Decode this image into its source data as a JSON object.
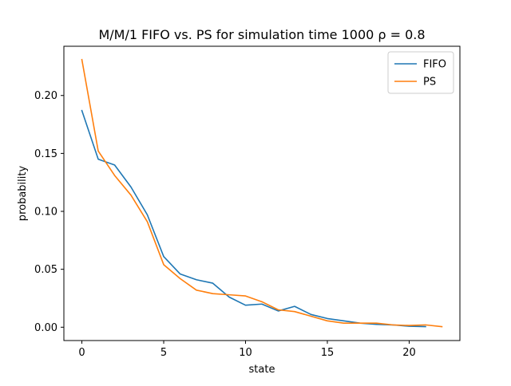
{
  "chart_data": {
    "type": "line",
    "title": "M/M/1 FIFO vs. PS for simulation time 1000 ρ = 0.8",
    "xlabel": "state",
    "ylabel": "probability",
    "xlim": [
      -1.1,
      23.1
    ],
    "ylim": [
      -0.0115,
      0.2425
    ],
    "xticks": [
      0,
      5,
      10,
      15,
      20
    ],
    "xtick_labels": [
      "0",
      "5",
      "10",
      "15",
      "20"
    ],
    "yticks": [
      0.0,
      0.05,
      0.1,
      0.15,
      0.2
    ],
    "ytick_labels": [
      "0.00",
      "0.05",
      "0.10",
      "0.15",
      "0.20"
    ],
    "grid": false,
    "legend_position": "top-right",
    "series": [
      {
        "name": "FIFO",
        "color": "#1f77b4",
        "x": [
          0,
          1,
          2,
          3,
          4,
          5,
          6,
          7,
          8,
          9,
          10,
          11,
          12,
          13,
          14,
          15,
          16,
          17,
          18,
          19,
          20,
          21
        ],
        "y": [
          0.187,
          0.145,
          0.14,
          0.121,
          0.097,
          0.061,
          0.046,
          0.041,
          0.038,
          0.026,
          0.019,
          0.02,
          0.014,
          0.018,
          0.011,
          0.0075,
          0.0055,
          0.0035,
          0.0025,
          0.002,
          0.0008,
          0.0005
        ]
      },
      {
        "name": "PS",
        "color": "#ff7f0e",
        "x": [
          0,
          1,
          2,
          3,
          4,
          5,
          6,
          7,
          8,
          9,
          10,
          11,
          12,
          13,
          14,
          15,
          16,
          17,
          18,
          19,
          20,
          21,
          22
        ],
        "y": [
          0.231,
          0.152,
          0.131,
          0.114,
          0.091,
          0.054,
          0.042,
          0.032,
          0.029,
          0.028,
          0.027,
          0.022,
          0.015,
          0.0135,
          0.0095,
          0.0055,
          0.0035,
          0.0035,
          0.0035,
          0.002,
          0.0015,
          0.002,
          0.0005
        ]
      }
    ]
  }
}
